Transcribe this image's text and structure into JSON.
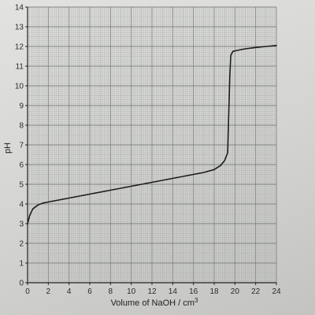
{
  "chart_data": {
    "type": "line",
    "title": "",
    "xlabel": "Volume of NaOH / cm",
    "xlabel_superscript": "3",
    "ylabel": "pH",
    "xlim": [
      0,
      24
    ],
    "ylim": [
      0,
      14
    ],
    "x_ticks": [
      "0",
      "2",
      "4",
      "6",
      "8",
      "10",
      "12",
      "14",
      "16",
      "18",
      "20",
      "22",
      "24"
    ],
    "y_ticks": [
      "0",
      "1",
      "2",
      "3",
      "4",
      "5",
      "6",
      "7",
      "8",
      "9",
      "10",
      "11",
      "12",
      "13",
      "14"
    ],
    "grid": true,
    "series": [
      {
        "x": [
          0,
          0.2,
          0.5,
          1.0,
          1.5,
          2,
          4,
          6,
          8,
          10,
          12,
          14,
          16,
          17,
          18,
          18.6,
          19.0,
          19.3,
          19.4,
          19.5,
          19.6,
          19.8,
          20.2,
          21,
          22,
          23,
          24
        ],
        "y": [
          3.0,
          3.4,
          3.75,
          3.95,
          4.05,
          4.1,
          4.3,
          4.5,
          4.7,
          4.9,
          5.1,
          5.3,
          5.5,
          5.6,
          5.75,
          5.95,
          6.2,
          6.6,
          8.5,
          10.5,
          11.55,
          11.75,
          11.8,
          11.88,
          11.95,
          12.0,
          12.05
        ]
      }
    ],
    "colors": {
      "line": "#1c1c1c",
      "grid_minor": "#a9aca9",
      "grid_major": "#7d807d",
      "axis": "#222222"
    }
  }
}
